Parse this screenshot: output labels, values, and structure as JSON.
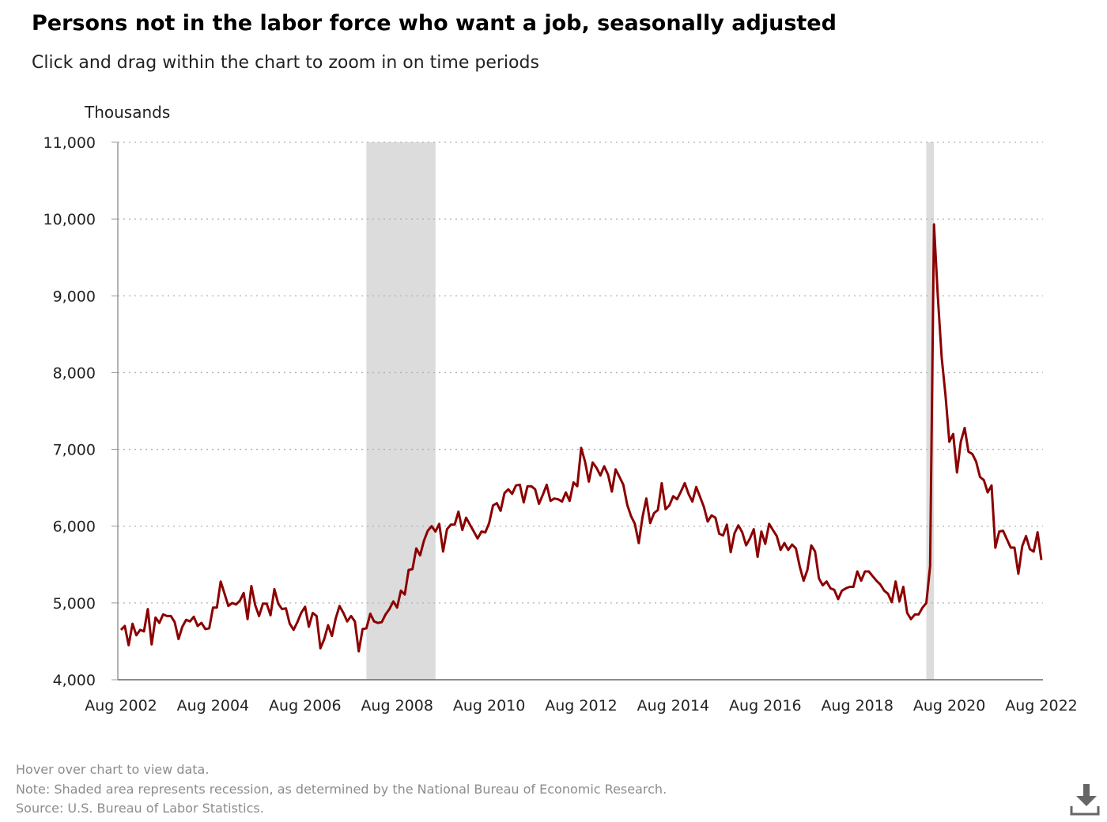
{
  "title": "Persons not in the labor force who want a job, seasonally adjusted",
  "subtitle": "Click and drag within the chart to zoom in on time periods",
  "footer": {
    "hover": "Hover over chart to view data.",
    "note": "Note: Shaded area represents recession, as determined by the National Bureau of Economic Research.",
    "source": "Source: U.S. Bureau of Labor Statistics."
  },
  "download": {
    "icon": "download-icon"
  },
  "colors": {
    "line": "#8b0000",
    "recession": "#dcdcdc",
    "grid": "#b0b0b0",
    "axis": "#999999"
  },
  "chart_data": {
    "type": "line",
    "ylabel": "Thousands",
    "ylim": [
      4000,
      11000
    ],
    "yticks": [
      4000,
      5000,
      6000,
      7000,
      8000,
      9000,
      10000,
      11000
    ],
    "ytick_labels": [
      "4,000",
      "5,000",
      "6,000",
      "7,000",
      "8,000",
      "9,000",
      "10,000",
      "11,000"
    ],
    "xlim": [
      "2002-08",
      "2022-08"
    ],
    "xticks": [
      "2002-08",
      "2004-08",
      "2006-08",
      "2008-08",
      "2010-08",
      "2012-08",
      "2014-08",
      "2016-08",
      "2018-08",
      "2020-08",
      "2022-08"
    ],
    "xtick_labels": [
      "Aug 2002",
      "Aug 2004",
      "Aug 2006",
      "Aug 2008",
      "Aug 2010",
      "Aug 2012",
      "Aug 2014",
      "Aug 2016",
      "Aug 2018",
      "Aug 2020",
      "Aug 2022"
    ],
    "grid": "horizontal dotted",
    "recessions": [
      {
        "start": "2007-12",
        "end": "2009-06"
      },
      {
        "start": "2020-02",
        "end": "2020-04"
      }
    ],
    "series": [
      {
        "x": [
          "2002-08",
          "2002-09",
          "2002-10",
          "2002-11",
          "2002-12",
          "2003-01",
          "2003-02",
          "2003-03",
          "2003-04",
          "2003-05",
          "2003-06",
          "2003-07",
          "2003-08",
          "2003-09",
          "2003-10",
          "2003-11",
          "2003-12",
          "2004-01",
          "2004-02",
          "2004-03",
          "2004-04",
          "2004-05",
          "2004-06",
          "2004-07",
          "2004-08",
          "2004-09",
          "2004-10",
          "2004-11",
          "2004-12",
          "2005-01",
          "2005-02",
          "2005-03",
          "2005-04",
          "2005-05",
          "2005-06",
          "2005-07",
          "2005-08",
          "2005-09",
          "2005-10",
          "2005-11",
          "2005-12",
          "2006-01",
          "2006-02",
          "2006-03",
          "2006-04",
          "2006-05",
          "2006-06",
          "2006-07",
          "2006-08",
          "2006-09",
          "2006-10",
          "2006-11",
          "2006-12",
          "2007-01",
          "2007-02",
          "2007-03",
          "2007-04",
          "2007-05",
          "2007-06",
          "2007-07",
          "2007-08",
          "2007-09",
          "2007-10",
          "2007-11",
          "2007-12",
          "2008-01",
          "2008-02",
          "2008-03",
          "2008-04",
          "2008-05",
          "2008-06",
          "2008-07",
          "2008-08",
          "2008-09",
          "2008-10",
          "2008-11",
          "2008-12",
          "2009-01",
          "2009-02",
          "2009-03",
          "2009-04",
          "2009-05",
          "2009-06",
          "2009-07",
          "2009-08",
          "2009-09",
          "2009-10",
          "2009-11",
          "2009-12",
          "2010-01",
          "2010-02",
          "2010-03",
          "2010-04",
          "2010-05",
          "2010-06",
          "2010-07",
          "2010-08",
          "2010-09",
          "2010-10",
          "2010-11",
          "2010-12",
          "2011-01",
          "2011-02",
          "2011-03",
          "2011-04",
          "2011-05",
          "2011-06",
          "2011-07",
          "2011-08",
          "2011-09",
          "2011-10",
          "2011-11",
          "2011-12",
          "2012-01",
          "2012-02",
          "2012-03",
          "2012-04",
          "2012-05",
          "2012-06",
          "2012-07",
          "2012-08",
          "2012-09",
          "2012-10",
          "2012-11",
          "2012-12",
          "2013-01",
          "2013-02",
          "2013-03",
          "2013-04",
          "2013-05",
          "2013-06",
          "2013-07",
          "2013-08",
          "2013-09",
          "2013-10",
          "2013-11",
          "2013-12",
          "2014-01",
          "2014-02",
          "2014-03",
          "2014-04",
          "2014-05",
          "2014-06",
          "2014-07",
          "2014-08",
          "2014-09",
          "2014-10",
          "2014-11",
          "2014-12",
          "2015-01",
          "2015-02",
          "2015-03",
          "2015-04",
          "2015-05",
          "2015-06",
          "2015-07",
          "2015-08",
          "2015-09",
          "2015-10",
          "2015-11",
          "2015-12",
          "2016-01",
          "2016-02",
          "2016-03",
          "2016-04",
          "2016-05",
          "2016-06",
          "2016-07",
          "2016-08",
          "2016-09",
          "2016-10",
          "2016-11",
          "2016-12",
          "2017-01",
          "2017-02",
          "2017-03",
          "2017-04",
          "2017-05",
          "2017-06",
          "2017-07",
          "2017-08",
          "2017-09",
          "2017-10",
          "2017-11",
          "2017-12",
          "2018-01",
          "2018-02",
          "2018-03",
          "2018-04",
          "2018-05",
          "2018-06",
          "2018-07",
          "2018-08",
          "2018-09",
          "2018-10",
          "2018-11",
          "2018-12",
          "2019-01",
          "2019-02",
          "2019-03",
          "2019-04",
          "2019-05",
          "2019-06",
          "2019-07",
          "2019-08",
          "2019-09",
          "2019-10",
          "2019-11",
          "2019-12",
          "2020-01",
          "2020-02",
          "2020-03",
          "2020-04",
          "2020-05",
          "2020-06",
          "2020-07",
          "2020-08",
          "2020-09",
          "2020-10",
          "2020-11",
          "2020-12",
          "2021-01",
          "2021-02",
          "2021-03",
          "2021-04",
          "2021-05",
          "2021-06",
          "2021-07",
          "2021-08",
          "2021-09",
          "2021-10",
          "2021-11",
          "2021-12",
          "2022-01",
          "2022-02",
          "2022-03",
          "2022-04",
          "2022-05",
          "2022-06",
          "2022-07",
          "2022-08"
        ],
        "y": [
          4650,
          4700,
          4450,
          4730,
          4580,
          4650,
          4630,
          4920,
          4460,
          4810,
          4740,
          4850,
          4830,
          4830,
          4750,
          4530,
          4690,
          4780,
          4760,
          4820,
          4700,
          4740,
          4660,
          4670,
          4940,
          4940,
          5280,
          5120,
          4960,
          5000,
          4980,
          5030,
          5130,
          4790,
          5220,
          4970,
          4830,
          4990,
          4990,
          4840,
          5180,
          4990,
          4920,
          4930,
          4730,
          4650,
          4750,
          4870,
          4950,
          4690,
          4870,
          4830,
          4410,
          4530,
          4710,
          4570,
          4800,
          4960,
          4870,
          4760,
          4830,
          4760,
          4370,
          4660,
          4670,
          4860,
          4760,
          4740,
          4750,
          4850,
          4920,
          5020,
          4940,
          5160,
          5110,
          5430,
          5440,
          5710,
          5620,
          5810,
          5940,
          6000,
          5930,
          6030,
          5670,
          5960,
          6020,
          6020,
          6190,
          5950,
          6110,
          6020,
          5930,
          5840,
          5930,
          5920,
          6040,
          6270,
          6300,
          6200,
          6430,
          6480,
          6420,
          6530,
          6540,
          6310,
          6520,
          6520,
          6480,
          6290,
          6410,
          6540,
          6330,
          6360,
          6350,
          6320,
          6440,
          6330,
          6570,
          6520,
          7020,
          6840,
          6580,
          6830,
          6760,
          6660,
          6780,
          6670,
          6450,
          6740,
          6640,
          6540,
          6280,
          6130,
          6030,
          5780,
          6120,
          6360,
          6040,
          6170,
          6210,
          6560,
          6220,
          6270,
          6390,
          6350,
          6450,
          6560,
          6420,
          6320,
          6510,
          6380,
          6250,
          6060,
          6140,
          6110,
          5900,
          5880,
          6020,
          5660,
          5910,
          6010,
          5920,
          5750,
          5840,
          5960,
          5600,
          5930,
          5770,
          6030,
          5950,
          5870,
          5690,
          5780,
          5690,
          5760,
          5710,
          5470,
          5290,
          5430,
          5750,
          5670,
          5320,
          5230,
          5280,
          5190,
          5170,
          5050,
          5160,
          5190,
          5210,
          5210,
          5410,
          5290,
          5410,
          5410,
          5350,
          5290,
          5240,
          5160,
          5120,
          5010,
          5280,
          5020,
          5210,
          4870,
          4790,
          4850,
          4850,
          4940,
          5000,
          5480,
          9930,
          9000,
          8200,
          7700,
          7100,
          7200,
          6700,
          7100,
          7280,
          6970,
          6940,
          6840,
          6640,
          6600,
          6440,
          6530,
          5720,
          5930,
          5940,
          5830,
          5720,
          5720,
          5380,
          5740,
          5870,
          5700,
          5670,
          5920,
          5560
        ]
      }
    ]
  }
}
